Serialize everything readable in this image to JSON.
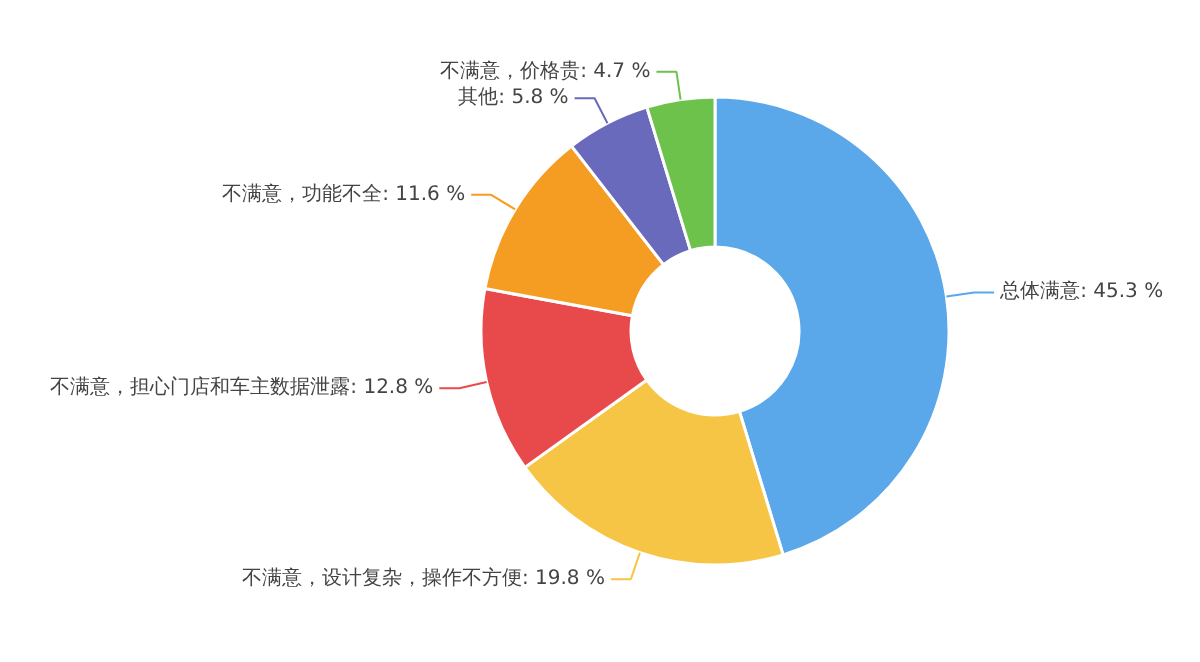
{
  "chart_data": {
    "type": "donut",
    "categories": [
      "总体满意",
      "不满意，设计复杂，操作不方便",
      "不满意，担心门店和车主数据泄露",
      "不满意，功能不全",
      "其他",
      "不满意，价格贵"
    ],
    "values": [
      45.3,
      19.8,
      12.8,
      11.6,
      5.8,
      4.7
    ],
    "colors": [
      "#5aa7ea",
      "#f7c545",
      "#e84a4c",
      "#f59d22",
      "#6a6abd",
      "#6cc24b"
    ],
    "value_labels": [
      "45.3 %",
      "19.8 %",
      "12.8 %",
      "11.6 %",
      "5.8 %",
      "4.7 %"
    ]
  }
}
